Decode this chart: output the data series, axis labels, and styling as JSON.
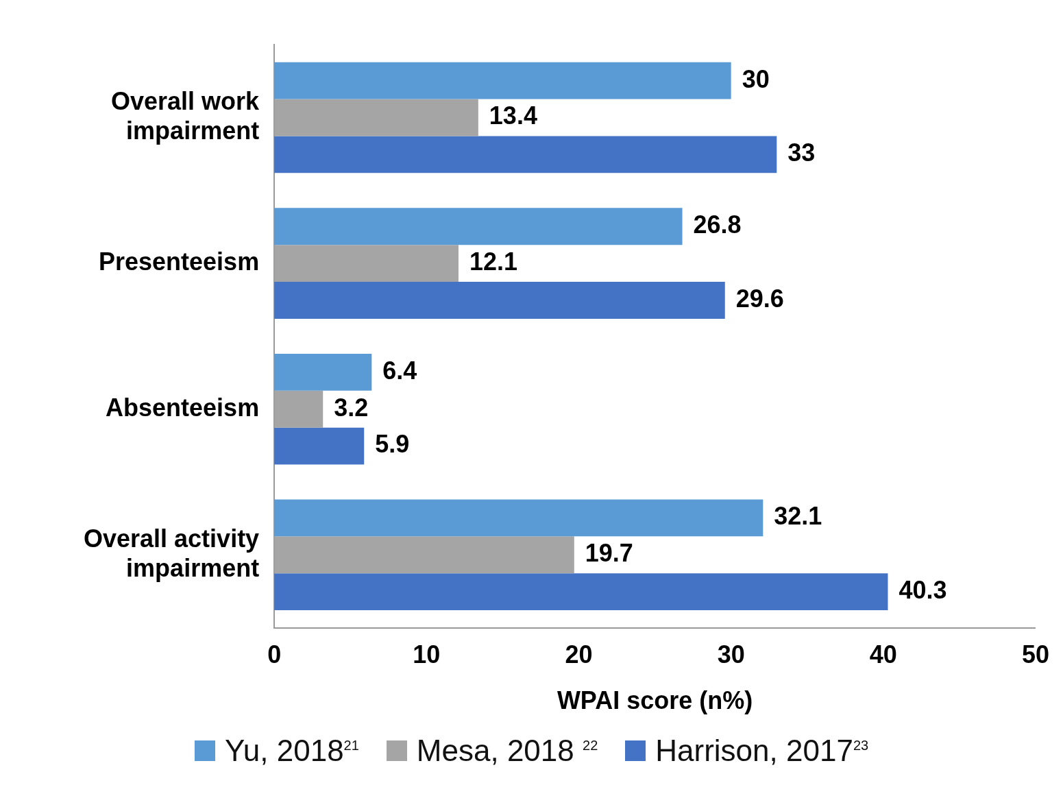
{
  "chart_data": {
    "type": "bar",
    "orientation": "horizontal",
    "xlabel": "WPAI score (n%)",
    "categories": [
      "Overall work impairment",
      "Presenteeism",
      "Absenteeism",
      "Overall activity impairment"
    ],
    "series": [
      {
        "name": "Yu, 2018$^{21}$",
        "color": "#5b9bd5",
        "values": [
          30,
          26.8,
          6.4,
          32.1
        ]
      },
      {
        "name": "Mesa, 2018 $^{22}$",
        "color": "#a5a5a5",
        "values": [
          13.4,
          12.1,
          3.2,
          19.7
        ]
      },
      {
        "name": "Harrison, 2017$^{23}$",
        "color": "#4472c4",
        "values": [
          33,
          29.6,
          5.9,
          40.3
        ]
      }
    ],
    "xlim": [
      0,
      50
    ],
    "xticks": [
      0,
      10,
      20,
      30,
      40,
      50
    ],
    "data_labels": true,
    "grid": false,
    "legend": "bottom"
  }
}
